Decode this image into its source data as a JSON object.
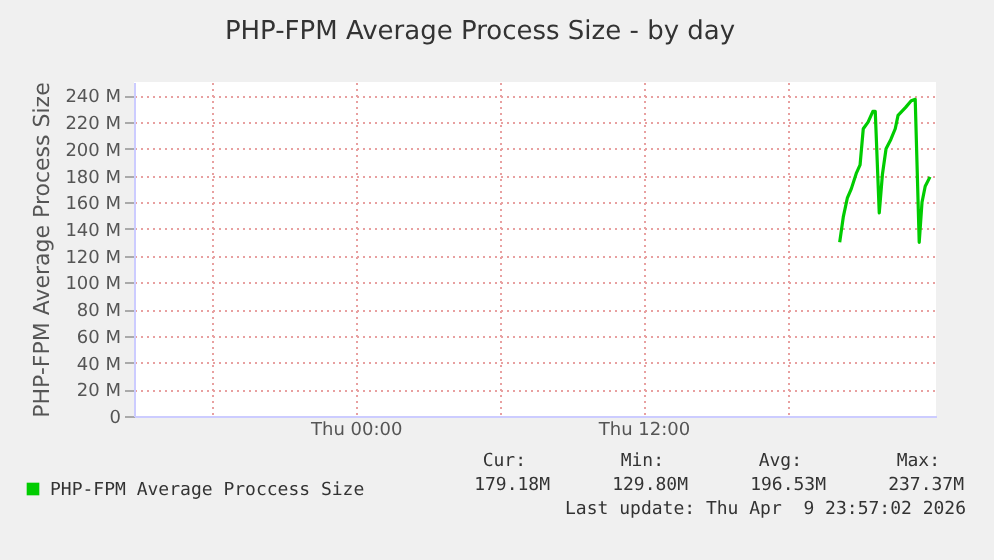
{
  "chart_data": {
    "type": "line",
    "title": "PHP-FPM Average Process Size - by day",
    "ylabel": "PHP-FPM Average Process Size",
    "x": [
      "2026-04-09T20:11",
      "2026-04-09T20:20",
      "2026-04-09T20:30",
      "2026-04-09T20:40",
      "2026-04-09T20:53",
      "2026-04-09T21:02",
      "2026-04-09T21:10",
      "2026-04-09T21:22",
      "2026-04-09T21:34",
      "2026-04-09T21:40",
      "2026-04-09T21:50",
      "2026-04-09T21:58",
      "2026-04-09T22:07",
      "2026-04-09T22:19",
      "2026-04-09T22:30",
      "2026-04-09T22:37",
      "2026-04-09T22:56",
      "2026-04-09T23:10",
      "2026-04-09T23:20",
      "2026-04-09T23:30",
      "2026-04-09T23:37",
      "2026-04-09T23:45",
      "2026-04-09T23:57"
    ],
    "series": [
      {
        "name": "PHP-FPM Average Proccess Size",
        "color": "#00cc00",
        "values": [
          130,
          149,
          163,
          170,
          182,
          188,
          215,
          220,
          228,
          228,
          152,
          181,
          200,
          207,
          215,
          225,
          231,
          236,
          237,
          130,
          160,
          172,
          179
        ]
      }
    ],
    "xlim": [
      "2026-04-08T14:45",
      "2026-04-10T00:12"
    ],
    "xticks": [
      {
        "value": "2026-04-08T18:00",
        "label": null
      },
      {
        "value": "2026-04-09T00:00",
        "label": "Thu 00:00"
      },
      {
        "value": "2026-04-09T06:00",
        "label": null
      },
      {
        "value": "2026-04-09T12:00",
        "label": "Thu 12:00"
      },
      {
        "value": "2026-04-09T18:00",
        "label": null
      }
    ],
    "ylim": [
      0,
      250
    ],
    "yticks": [
      0,
      {
        "value": 20,
        "label": "20 M"
      },
      {
        "value": 40,
        "label": "40 M"
      },
      {
        "value": 60,
        "label": "60 M"
      },
      {
        "value": 80,
        "label": "80 M"
      },
      {
        "value": 100,
        "label": "100 M"
      },
      {
        "value": 120,
        "label": "120 M"
      },
      {
        "value": 140,
        "label": "140 M"
      },
      {
        "value": 160,
        "label": "160 M"
      },
      {
        "value": 180,
        "label": "180 M"
      },
      {
        "value": 200,
        "label": "200 M"
      },
      {
        "value": 220,
        "label": "220 M"
      },
      {
        "value": 240,
        "label": "240 M"
      }
    ],
    "grid": true,
    "legend": "bottom left",
    "annotations": [
      "Cur:",
      "179.18M",
      "Min:",
      "129.80M",
      "Avg:",
      "196.53M",
      "Max:",
      "237.37M",
      "Last update: Thu Apr  9 23:57:02 2026"
    ]
  }
}
